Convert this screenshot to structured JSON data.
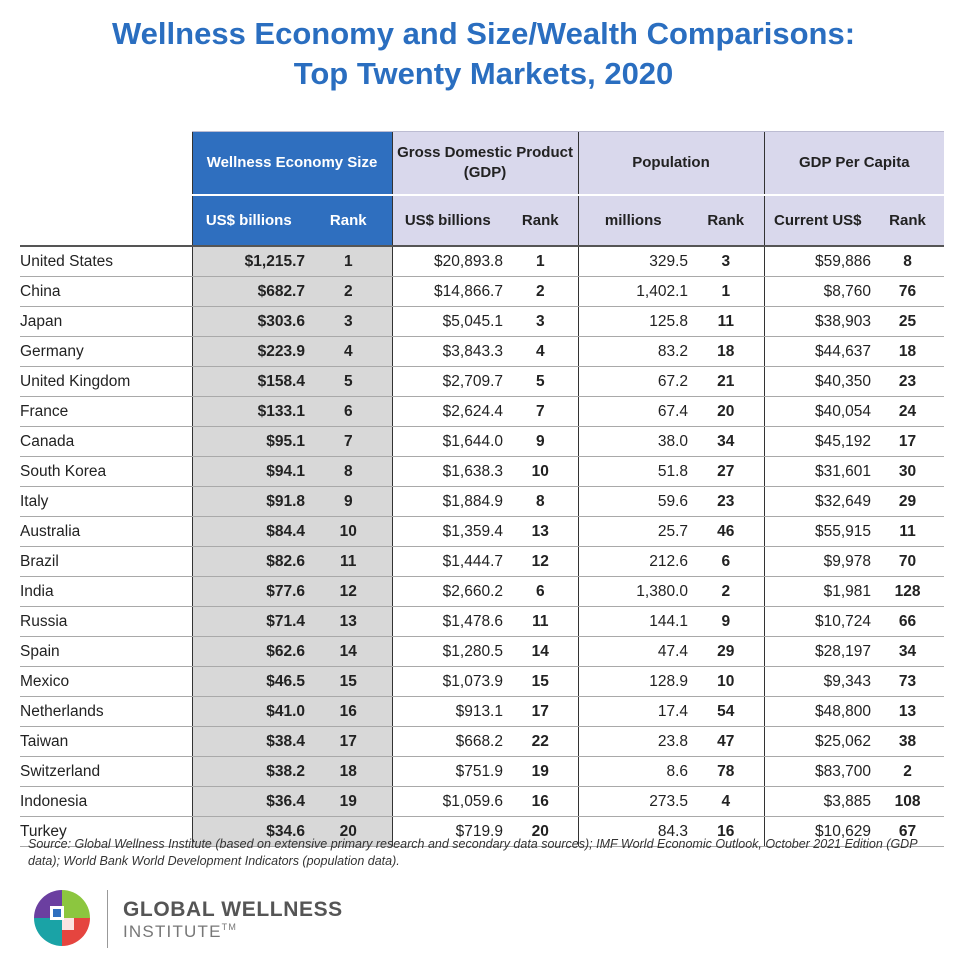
{
  "title_line1": "Wellness Economy and Size/Wealth Comparisons:",
  "title_line2": "Top Twenty Markets, 2020",
  "colors": {
    "title": "#2a6ec0",
    "wellness_header": "#2f6fbf",
    "other_header": "#d9d8ec",
    "wellness_cells": "#d8d8d8"
  },
  "headers": {
    "groups": [
      "Wellness Economy Size",
      "Gross Domestic Product (GDP)",
      "Population",
      "GDP Per Capita"
    ],
    "sub": [
      "US$ billions",
      "Rank",
      "US$ billions",
      "Rank",
      "millions",
      "Rank",
      "Current US$",
      "Rank"
    ]
  },
  "rows": [
    [
      "United States",
      "$1,215.7",
      "1",
      "$20,893.8",
      "1",
      "329.5",
      "3",
      "$59,886",
      "8"
    ],
    [
      "China",
      "$682.7",
      "2",
      "$14,866.7",
      "2",
      "1,402.1",
      "1",
      "$8,760",
      "76"
    ],
    [
      "Japan",
      "$303.6",
      "3",
      "$5,045.1",
      "3",
      "125.8",
      "11",
      "$38,903",
      "25"
    ],
    [
      "Germany",
      "$223.9",
      "4",
      "$3,843.3",
      "4",
      "83.2",
      "18",
      "$44,637",
      "18"
    ],
    [
      "United Kingdom",
      "$158.4",
      "5",
      "$2,709.7",
      "5",
      "67.2",
      "21",
      "$40,350",
      "23"
    ],
    [
      "France",
      "$133.1",
      "6",
      "$2,624.4",
      "7",
      "67.4",
      "20",
      "$40,054",
      "24"
    ],
    [
      "Canada",
      "$95.1",
      "7",
      "$1,644.0",
      "9",
      "38.0",
      "34",
      "$45,192",
      "17"
    ],
    [
      "South Korea",
      "$94.1",
      "8",
      "$1,638.3",
      "10",
      "51.8",
      "27",
      "$31,601",
      "30"
    ],
    [
      "Italy",
      "$91.8",
      "9",
      "$1,884.9",
      "8",
      "59.6",
      "23",
      "$32,649",
      "29"
    ],
    [
      "Australia",
      "$84.4",
      "10",
      "$1,359.4",
      "13",
      "25.7",
      "46",
      "$55,915",
      "11"
    ],
    [
      "Brazil",
      "$82.6",
      "11",
      "$1,444.7",
      "12",
      "212.6",
      "6",
      "$9,978",
      "70"
    ],
    [
      "India",
      "$77.6",
      "12",
      "$2,660.2",
      "6",
      "1,380.0",
      "2",
      "$1,981",
      "128"
    ],
    [
      "Russia",
      "$71.4",
      "13",
      "$1,478.6",
      "11",
      "144.1",
      "9",
      "$10,724",
      "66"
    ],
    [
      "Spain",
      "$62.6",
      "14",
      "$1,280.5",
      "14",
      "47.4",
      "29",
      "$28,197",
      "34"
    ],
    [
      "Mexico",
      "$46.5",
      "15",
      "$1,073.9",
      "15",
      "128.9",
      "10",
      "$9,343",
      "73"
    ],
    [
      "Netherlands",
      "$41.0",
      "16",
      "$913.1",
      "17",
      "17.4",
      "54",
      "$48,800",
      "13"
    ],
    [
      "Taiwan",
      "$38.4",
      "17",
      "$668.2",
      "22",
      "23.8",
      "47",
      "$25,062",
      "38"
    ],
    [
      "Switzerland",
      "$38.2",
      "18",
      "$751.9",
      "19",
      "8.6",
      "78",
      "$83,700",
      "2"
    ],
    [
      "Indonesia",
      "$36.4",
      "19",
      "$1,059.6",
      "16",
      "273.5",
      "4",
      "$3,885",
      "108"
    ],
    [
      "Turkey",
      "$34.6",
      "20",
      "$719.9",
      "20",
      "84.3",
      "16",
      "$10,629",
      "67"
    ]
  ],
  "source": "Source: Global Wellness Institute (based on extensive primary research and secondary data sources); IMF World Economic Outlook, October 2021 Edition (GDP data); World Bank World Development Indicators (population data).",
  "brand": {
    "line1": "GLOBAL WELLNESS",
    "line2": "INSTITUTE",
    "tm": "TM",
    "logo_icon": "global-wellness-logo-icon"
  }
}
